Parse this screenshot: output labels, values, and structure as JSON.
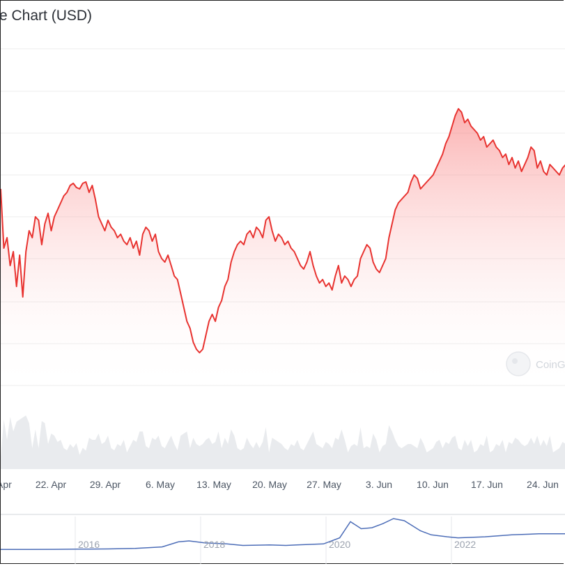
{
  "header": {
    "title": "e Chart (USD)"
  },
  "watermark": {
    "text": "CoinG"
  },
  "colors": {
    "line": "#e8322f",
    "fill_top": "#f8a0a0",
    "grid": "#ececec",
    "volume": "#e9ebee",
    "navigator": "#4b6cb7"
  },
  "chart_data": [
    {
      "type": "area",
      "title": "e Chart (USD)",
      "x_tick_labels": [
        "Apr",
        "22. Apr",
        "29. Apr",
        "6. May",
        "13. May",
        "20. May",
        "27. May",
        "3. Jun",
        "10. Jun",
        "17. Jun",
        "24. Jun"
      ],
      "y_tick_labels": [],
      "grid": true,
      "series": [
        {
          "x": [
            0,
            0.5,
            1,
            1.5,
            2,
            2.5,
            3,
            3.5,
            4,
            4.5,
            5,
            5.5,
            6,
            6.5,
            7,
            7.5,
            8,
            8.5,
            9,
            9.5,
            10,
            10.5,
            11,
            11.5,
            12,
            12.5,
            13,
            13.5,
            14,
            14.5,
            15,
            15.5,
            16,
            16.5,
            17,
            17.5,
            18,
            18.5,
            19,
            19.5,
            20,
            20.5,
            21,
            21.5,
            22,
            22.5,
            23,
            23.5,
            24,
            24.5,
            25,
            25.5,
            26,
            26.5,
            27,
            27.5,
            28,
            28.5,
            29,
            29.5,
            30,
            30.5,
            31,
            31.5,
            32,
            32.5,
            33,
            33.5,
            34,
            34.5,
            35,
            35.5,
            36,
            36.5,
            37,
            37.5,
            38,
            38.5,
            39,
            39.5,
            40,
            40.5,
            41,
            41.5,
            42,
            42.5,
            43,
            43.5,
            44,
            44.5,
            45,
            45.5,
            46,
            46.5,
            47,
            47.5,
            48,
            48.5,
            49,
            49.5,
            50,
            50.5,
            51,
            51.5,
            52,
            52.5,
            53,
            53.5,
            54,
            54.5,
            55,
            55.5,
            56,
            56.5,
            57,
            57.5,
            58,
            58.5,
            59,
            59.5,
            60,
            60.5,
            61,
            61.5,
            62,
            62.5,
            63,
            63.5,
            64,
            64.5,
            65,
            65.5,
            66,
            66.5,
            67,
            67.5,
            68,
            68.5,
            69,
            69.5,
            70,
            70.5,
            71,
            71.5,
            72,
            72.5,
            73,
            73.5,
            74,
            74.5,
            75,
            75.5,
            76,
            76.5,
            77,
            77.5,
            78,
            78.5,
            79,
            79.5,
            80,
            80.5,
            81,
            81.5,
            82,
            82.5,
            83,
            83.5,
            84,
            84.5,
            85,
            85.5,
            86,
            86.5,
            87,
            87.5,
            88,
            88.5,
            89,
            89.5
          ],
          "y": [
            270,
            355,
            340,
            380,
            360,
            410,
            365,
            425,
            360,
            330,
            340,
            310,
            315,
            350,
            320,
            305,
            330,
            310,
            300,
            290,
            280,
            275,
            265,
            262,
            268,
            270,
            262,
            260,
            275,
            265,
            285,
            310,
            320,
            330,
            315,
            325,
            330,
            340,
            335,
            345,
            350,
            340,
            355,
            345,
            365,
            335,
            325,
            330,
            345,
            335,
            360,
            370,
            375,
            365,
            380,
            395,
            400,
            420,
            440,
            460,
            470,
            490,
            500,
            505,
            500,
            480,
            460,
            450,
            460,
            440,
            430,
            410,
            400,
            375,
            360,
            350,
            345,
            350,
            335,
            330,
            340,
            325,
            330,
            340,
            315,
            310,
            330,
            345,
            335,
            340,
            350,
            345,
            355,
            360,
            370,
            380,
            385,
            375,
            360,
            380,
            395,
            405,
            400,
            410,
            405,
            415,
            395,
            380,
            405,
            395,
            400,
            410,
            400,
            395,
            370,
            360,
            350,
            355,
            375,
            385,
            390,
            380,
            370,
            340,
            320,
            300,
            290,
            285,
            280,
            275,
            260,
            250,
            255,
            270,
            265,
            260,
            255,
            250,
            240,
            230,
            220,
            205,
            195,
            180,
            165,
            155,
            160,
            175,
            170,
            180,
            185,
            190,
            200,
            195,
            210,
            205,
            200,
            210,
            215,
            225,
            220,
            235,
            225,
            240,
            230,
            245,
            235,
            225,
            210,
            215,
            240,
            230,
            245,
            250,
            235,
            240,
            245,
            250,
            240,
            235
          ]
        }
      ]
    },
    {
      "type": "line",
      "x_tick_labels": [
        "2016",
        "2018",
        "2020",
        "2022"
      ],
      "series": [
        {
          "x": [
            2014.5,
            2015,
            2015.5,
            2016,
            2016.5,
            2017,
            2017.5,
            2017.8,
            2018,
            2018.3,
            2018.7,
            2019,
            2019.5,
            2019.8,
            2020,
            2020.5,
            2020.8,
            2021,
            2021.2,
            2021.4,
            2021.6,
            2021.8,
            2022,
            2022.3,
            2022.5,
            2022.8,
            2023,
            2023.5,
            2024,
            2024.5,
            2025
          ],
          "y": [
            0.5,
            0.5,
            0.6,
            0.8,
            1,
            1.5,
            3,
            8,
            9,
            7,
            6,
            4.5,
            5,
            4.5,
            5,
            6,
            12,
            28,
            21,
            22,
            26,
            31,
            29,
            19,
            15,
            13,
            12,
            13,
            15,
            16,
            16
          ]
        }
      ]
    }
  ]
}
